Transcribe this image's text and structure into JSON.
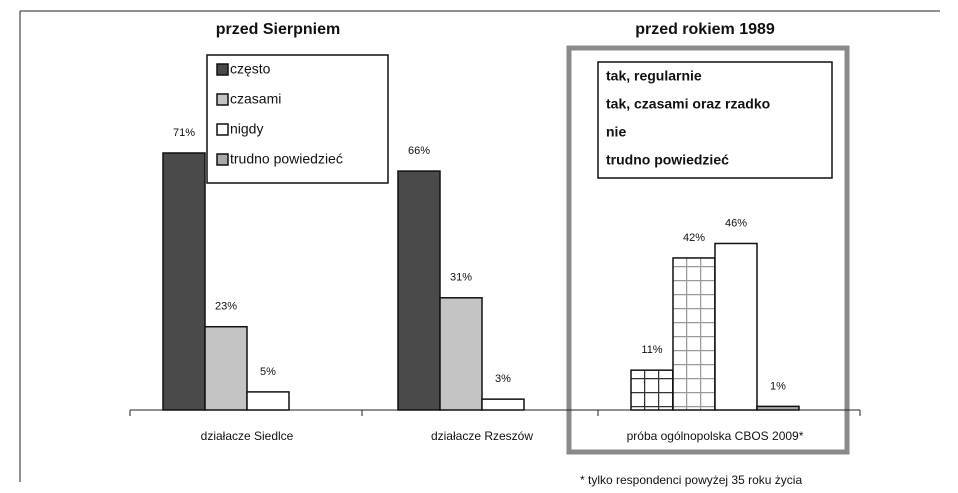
{
  "chart_data": [
    {
      "type": "bar",
      "title": "przed Sierpniem",
      "categories": [
        "działacze Siedlce",
        "działacze Rzeszów"
      ],
      "ylim": [
        0,
        100
      ],
      "series": [
        {
          "name": "często",
          "color": "#4a4a4a",
          "values": [
            71,
            66
          ],
          "value_labels": [
            "71%",
            "66%"
          ]
        },
        {
          "name": "czasami",
          "color": "#c4c4c4",
          "values": [
            23,
            31
          ],
          "value_labels": [
            "23%",
            "31%"
          ]
        },
        {
          "name": "nigdy",
          "color": "#ffffff",
          "values": [
            5,
            3
          ],
          "value_labels": [
            "5%",
            "3%"
          ]
        },
        {
          "name": "trudno powiedzieć",
          "color": "#a8a8a8",
          "values": [
            null,
            null
          ]
        }
      ]
    },
    {
      "type": "bar",
      "title": "przed rokiem 1989",
      "categories": [
        "próba ogólnopolska CBOS 2009*"
      ],
      "ylim": [
        0,
        100
      ],
      "legend_swatches": false,
      "series": [
        {
          "name": "tak, regularnie",
          "color": "#333333",
          "pattern": "grid",
          "values": [
            11
          ],
          "value_labels": [
            "11%"
          ]
        },
        {
          "name": "tak, czasami oraz rzadko",
          "color": "#9a9a9a",
          "pattern": "grid",
          "values": [
            42
          ],
          "value_labels": [
            "42%"
          ]
        },
        {
          "name": "nie",
          "color": "#ffffff",
          "values": [
            46
          ],
          "value_labels": [
            "46%"
          ]
        },
        {
          "name": "trudno powiedzieć",
          "color": "#a8a8a8",
          "values": [
            1
          ],
          "value_labels": [
            "1%"
          ]
        }
      ],
      "footnote": "* tylko respondenci powyżej 35 roku życia"
    }
  ]
}
